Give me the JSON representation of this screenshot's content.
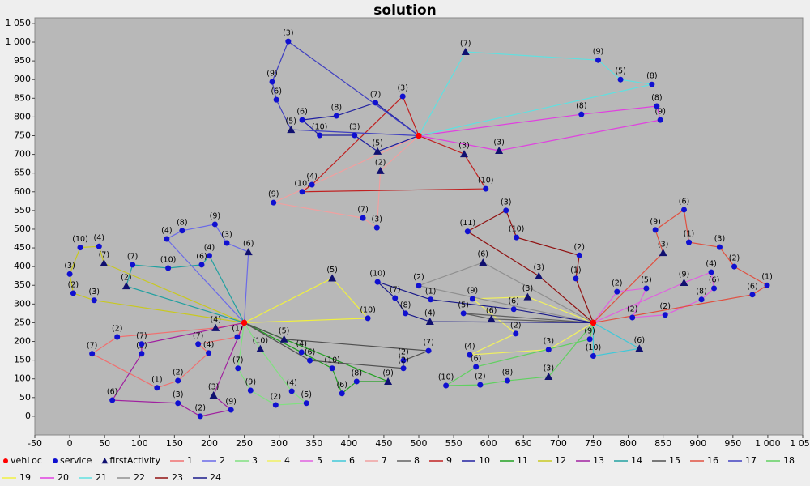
{
  "chart_data": {
    "type": "route",
    "title": "solution",
    "xlim": [
      -50,
      1050
    ],
    "ylim": [
      -50,
      1065
    ],
    "xticks": [
      -50,
      0,
      50,
      100,
      150,
      200,
      250,
      300,
      350,
      400,
      450,
      500,
      550,
      600,
      650,
      700,
      750,
      800,
      850,
      900,
      950,
      {
        "value": 1000,
        "label": "1 000"
      },
      {
        "value": 1050,
        "label": "1 050"
      }
    ],
    "yticks": [
      0,
      50,
      100,
      150,
      200,
      250,
      300,
      350,
      400,
      450,
      500,
      550,
      600,
      650,
      700,
      750,
      800,
      850,
      900,
      950,
      {
        "value": 1000,
        "label": "1 000"
      },
      {
        "value": 1050,
        "label": "1 050"
      }
    ],
    "markers": [
      {
        "name": "vehLoc",
        "color": "#ff0000",
        "shape": "circle"
      },
      {
        "name": "service",
        "color": "#1010d0",
        "shape": "circle"
      },
      {
        "name": "firstActivity",
        "color": "#101070",
        "shape": "triangle"
      }
    ],
    "series": [
      {
        "name": "1",
        "color": "#f07070",
        "x": [
          250,
          209,
          68,
          32,
          125,
          155,
          199,
          184,
          240,
          250
        ],
        "y": [
          250,
          236,
          212,
          167,
          76,
          95,
          169,
          193,
          212,
          250
        ],
        "labels": [
          null,
          "(4)",
          "(2)",
          "(7)",
          "(1)",
          "(2)",
          "(4)",
          "(7)",
          "(1)",
          null
        ]
      },
      {
        "name": "2",
        "color": "#6a6ae8",
        "x": [
          250,
          256,
          225,
          208,
          161,
          139,
          250
        ],
        "y": [
          250,
          439,
          463,
          513,
          496,
          474,
          250
        ],
        "labels": [
          null,
          "(6)",
          "(3)",
          "(9)",
          "(8)",
          "(4)",
          null
        ]
      },
      {
        "name": "3",
        "color": "#80e080",
        "x": [
          250,
          273,
          318,
          339,
          295,
          259,
          241,
          250
        ],
        "y": [
          250,
          180,
          67,
          35,
          30,
          69,
          128,
          250
        ],
        "labels": [
          null,
          "(10)",
          "(4)",
          "(5)",
          "(2)",
          "(9)",
          "(7)",
          null
        ]
      },
      {
        "name": "4",
        "color": "#f0f060",
        "x": [
          750,
          656,
          577,
          639,
          573,
          686,
          750
        ],
        "y": [
          250,
          319,
          314,
          221,
          164,
          178,
          250
        ],
        "labels": [
          null,
          "(3)",
          "(9)",
          "(2)",
          "(4)",
          "(3)",
          null
        ]
      },
      {
        "name": "5",
        "color": "#e060e0",
        "x": [
          750,
          880,
          919,
          923,
          905,
          853,
          806,
          826,
          784,
          750
        ],
        "y": [
          250,
          357,
          385,
          342,
          312,
          271,
          264,
          342,
          333,
          250
        ],
        "labels": [
          null,
          "(9)",
          "(4)",
          "(6)",
          "(8)",
          "(2)",
          "(2)",
          "(5)",
          "(2)",
          null
        ]
      },
      {
        "name": "6",
        "color": "#40c8d8",
        "x": [
          750,
          816,
          750,
          750
        ],
        "y": [
          250,
          181,
          161,
          250
        ],
        "labels": [
          null,
          "(6)",
          "(10)",
          null
        ]
      },
      {
        "name": "7",
        "color": "#f0a0a0",
        "x": [
          500,
          445,
          440,
          420,
          292,
          500
        ],
        "y": [
          750,
          656,
          504,
          530,
          571,
          750
        ],
        "labels": [
          null,
          "(2)",
          "(3)",
          "(7)",
          "(9)",
          null
        ]
      },
      {
        "name": "8",
        "color": "#606060",
        "x": [
          750,
          604,
          564,
          750
        ],
        "y": [
          250,
          260,
          275,
          250
        ],
        "labels": [
          null,
          "(6)",
          "(5)",
          null
        ]
      },
      {
        "name": "9",
        "color": "#c02020",
        "x": [
          500,
          565,
          596,
          333,
          347,
          477,
          500
        ],
        "y": [
          750,
          701,
          608,
          600,
          619,
          855,
          750
        ],
        "labels": [
          null,
          "(3)",
          "(10)",
          "(10)",
          "(4)",
          "(3)",
          null
        ]
      },
      {
        "name": "10",
        "color": "#2020a0",
        "x": [
          500,
          441,
          408,
          358,
          333,
          382,
          438,
          500
        ],
        "y": [
          750,
          708,
          751,
          751,
          792,
          803,
          838,
          750
        ],
        "labels": [
          null,
          "(5)",
          "(3)",
          "(10)",
          "(6)",
          "(8)",
          "(7)",
          null
        ]
      },
      {
        "name": "11",
        "color": "#20a020",
        "x": [
          250,
          456,
          411,
          390,
          376,
          332,
          250
        ],
        "y": [
          250,
          93,
          93,
          61,
          128,
          171,
          250
        ],
        "labels": [
          null,
          "(9)",
          "(8)",
          "(6)",
          "(10)",
          "(4)",
          null
        ]
      },
      {
        "name": "12",
        "color": "#c8c820",
        "x": [
          250,
          49,
          42,
          15,
          0,
          5,
          35,
          250
        ],
        "y": [
          250,
          409,
          454,
          451,
          380,
          329,
          310,
          250
        ],
        "labels": [
          null,
          "(7)",
          "(4)",
          "(10)",
          "(3)",
          "(2)",
          "(3)",
          null
        ]
      },
      {
        "name": "13",
        "color": "#a020a0",
        "x": [
          250,
          206,
          231,
          187,
          155,
          61,
          103,
          103,
          250
        ],
        "y": [
          250,
          56,
          17,
          0,
          35,
          43,
          167,
          193,
          250
        ],
        "labels": [
          null,
          "(3)",
          "(9)",
          "(2)",
          "(3)",
          "(6)",
          "(2)",
          "(7)",
          null
        ]
      },
      {
        "name": "14",
        "color": "#20a0a0",
        "x": [
          250,
          81,
          90,
          141,
          189,
          200,
          250
        ],
        "y": [
          250,
          348,
          405,
          396,
          405,
          429,
          250
        ],
        "labels": [
          null,
          "(2)",
          "(7)",
          "(10)",
          "(6)",
          "(4)",
          null
        ]
      },
      {
        "name": "15",
        "color": "#505050",
        "x": [
          250,
          307,
          514,
          478,
          478,
          344,
          250
        ],
        "y": [
          250,
          206,
          175,
          149,
          128,
          149,
          250
        ],
        "labels": [
          null,
          "(5)",
          "(7)",
          "(2)",
          "(2)",
          "(6)",
          null
        ]
      },
      {
        "name": "16",
        "color": "#e05040",
        "x": [
          750,
          850,
          839,
          880,
          887,
          931,
          952,
          999,
          978,
          750
        ],
        "y": [
          250,
          437,
          498,
          552,
          465,
          452,
          400,
          350,
          325,
          250
        ],
        "labels": [
          null,
          "(3)",
          "(9)",
          "(6)",
          "(1)",
          "(3)",
          "(2)",
          "(1)",
          "(6)",
          null
        ]
      },
      {
        "name": "17",
        "color": "#4040c0",
        "x": [
          500,
          317,
          296,
          290,
          313,
          500
        ],
        "y": [
          750,
          766,
          846,
          894,
          1002,
          750
        ],
        "labels": [
          null,
          "(5)",
          "(6)",
          "(9)",
          "(3)",
          null
        ]
      },
      {
        "name": "18",
        "color": "#60d060",
        "x": [
          750,
          686,
          627,
          588,
          539,
          582,
          745,
          750
        ],
        "y": [
          250,
          106,
          95,
          84,
          82,
          132,
          206,
          250
        ],
        "labels": [
          null,
          "(3)",
          "(8)",
          "(2)",
          "(10)",
          "(6)",
          "(9)",
          null
        ]
      },
      {
        "name": "19",
        "color": "#f0f040",
        "x": [
          250,
          376,
          427,
          250
        ],
        "y": [
          250,
          369,
          262,
          250
        ],
        "labels": [
          null,
          "(5)",
          "(10)",
          null
        ]
      },
      {
        "name": "20",
        "color": "#e040e0",
        "x": [
          500,
          615,
          846,
          841,
          733,
          500
        ],
        "y": [
          750,
          710,
          792,
          829,
          807,
          750
        ],
        "labels": [
          null,
          "(3)",
          "(9)",
          "(8)",
          "(8)",
          null
        ]
      },
      {
        "name": "21",
        "color": "#60e0e0",
        "x": [
          500,
          567,
          757,
          789,
          834,
          500
        ],
        "y": [
          750,
          974,
          952,
          900,
          887,
          750
        ],
        "labels": [
          null,
          "(7)",
          "(9)",
          "(5)",
          "(8)",
          null
        ]
      },
      {
        "name": "22",
        "color": "#909090",
        "x": [
          750,
          592,
          500,
          750
        ],
        "y": [
          250,
          411,
          349,
          250
        ],
        "labels": [
          null,
          "(6)",
          "(2)",
          null
        ]
      },
      {
        "name": "23",
        "color": "#901010",
        "x": [
          750,
          672,
          570,
          625,
          640,
          730,
          725,
          750
        ],
        "y": [
          250,
          375,
          494,
          550,
          478,
          430,
          368,
          250
        ],
        "labels": [
          null,
          "(3)",
          "(11)",
          "(3)",
          "(10)",
          "(2)",
          "(1)",
          null
        ]
      },
      {
        "name": "24",
        "color": "#1a1a8a",
        "x": [
          750,
          516,
          481,
          466,
          441,
          517,
          636,
          750
        ],
        "y": [
          250,
          253,
          275,
          316,
          359,
          312,
          286,
          250
        ],
        "labels": [
          null,
          "(4)",
          "(8)",
          "(7)",
          "(10)",
          "(1)",
          "(6)",
          null
        ]
      }
    ]
  }
}
